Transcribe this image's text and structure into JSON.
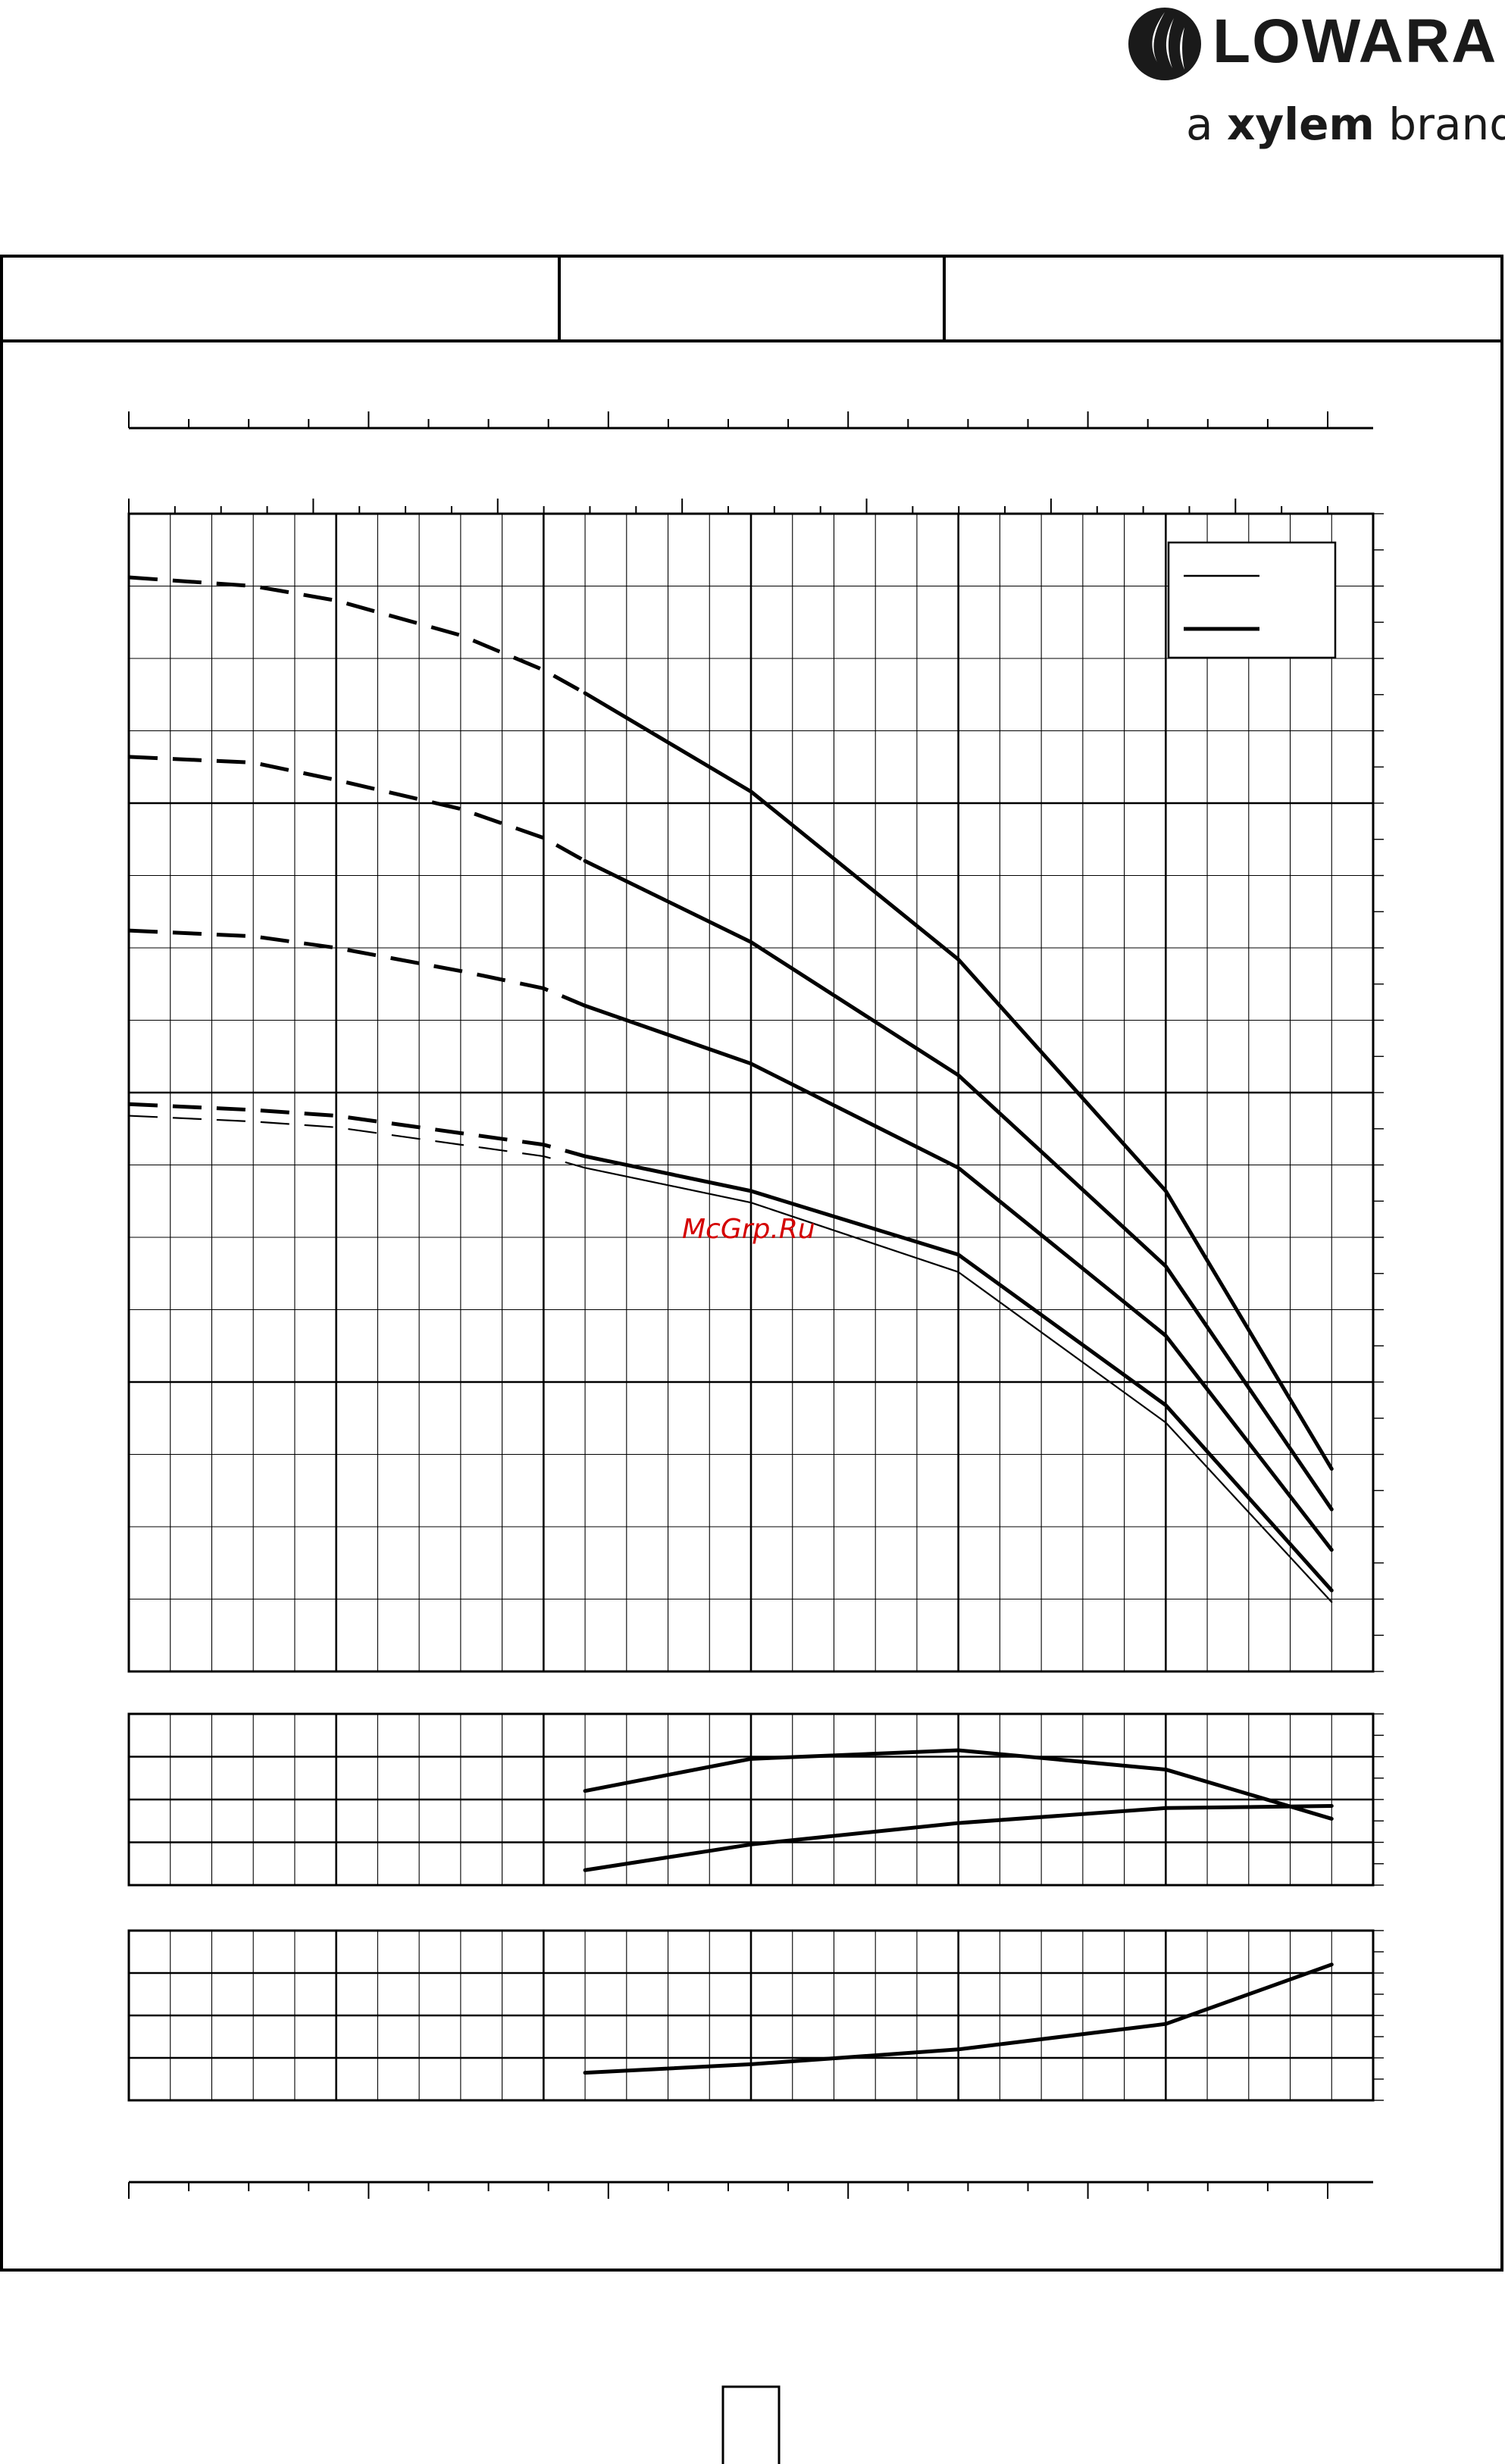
{
  "brand": {
    "name": "LOWARA",
    "tagline_prefix": "a ",
    "tagline_bold": "xylem",
    "tagline_suffix": " brand",
    "color": "#1a1a1a"
  },
  "watermark": {
    "text": "McGrp.Ru",
    "color": "#d40000"
  },
  "header_cells": [
    "",
    "",
    ""
  ],
  "page_number": "",
  "chart_data": [
    {
      "type": "line",
      "panel": "head",
      "title": "",
      "xlabel": "",
      "ylabel": "",
      "xlim": [
        0,
        30
      ],
      "ylim": [
        0,
        20
      ],
      "grid": true,
      "legend": {
        "placement": "top-right",
        "entries": [
          {
            "style": "thin"
          },
          {
            "style": "thick"
          }
        ]
      },
      "series": [
        {
          "style": "thick",
          "dash_until_x": 11,
          "x": [
            0,
            3,
            5,
            8,
            10,
            11,
            15,
            20,
            25,
            29
          ],
          "y": [
            18.9,
            18.75,
            18.5,
            17.9,
            17.3,
            16.9,
            15.2,
            12.3,
            8.3,
            3.5
          ]
        },
        {
          "style": "thick",
          "dash_until_x": 11,
          "x": [
            0,
            3,
            5,
            8,
            10,
            11,
            15,
            20,
            25,
            29
          ],
          "y": [
            15.8,
            15.7,
            15.4,
            14.9,
            14.4,
            14.0,
            12.6,
            10.3,
            7.0,
            2.8
          ]
        },
        {
          "style": "thick",
          "dash_until_x": 11,
          "x": [
            0,
            3,
            5,
            8,
            10,
            11,
            15,
            20,
            25,
            29
          ],
          "y": [
            12.8,
            12.7,
            12.5,
            12.1,
            11.8,
            11.5,
            10.5,
            8.7,
            5.8,
            2.1
          ]
        },
        {
          "style": "thick",
          "dash_until_x": 11,
          "x": [
            0,
            3,
            5,
            8,
            10,
            11,
            15,
            20,
            25,
            29
          ],
          "y": [
            9.8,
            9.7,
            9.6,
            9.3,
            9.1,
            8.9,
            8.3,
            7.2,
            4.6,
            1.4
          ]
        },
        {
          "style": "thin",
          "dash_until_x": 11,
          "x": [
            0,
            3,
            5,
            8,
            10,
            11,
            15,
            20,
            25,
            29
          ],
          "y": [
            9.6,
            9.5,
            9.4,
            9.1,
            8.9,
            8.7,
            8.1,
            6.9,
            4.3,
            1.2
          ]
        }
      ]
    },
    {
      "type": "line",
      "panel": "efficiency-power",
      "title": "",
      "xlabel": "",
      "ylabel": "",
      "xlim": [
        0,
        30
      ],
      "ylim": [
        0,
        4
      ],
      "grid": true,
      "series": [
        {
          "style": "thick",
          "x": [
            11,
            15,
            20,
            25,
            29
          ],
          "y": [
            2.2,
            2.95,
            3.15,
            2.7,
            1.55
          ]
        },
        {
          "style": "thick",
          "x": [
            11,
            15,
            20,
            25,
            29
          ],
          "y": [
            0.35,
            0.95,
            1.45,
            1.8,
            1.85
          ]
        }
      ]
    },
    {
      "type": "line",
      "panel": "npsh",
      "title": "",
      "xlabel": "",
      "ylabel": "",
      "xlim": [
        0,
        30
      ],
      "ylim": [
        0,
        4
      ],
      "grid": true,
      "series": [
        {
          "style": "thick",
          "x": [
            11,
            15,
            20,
            25,
            29
          ],
          "y": [
            0.65,
            0.85,
            1.2,
            1.8,
            3.2
          ]
        }
      ]
    }
  ]
}
